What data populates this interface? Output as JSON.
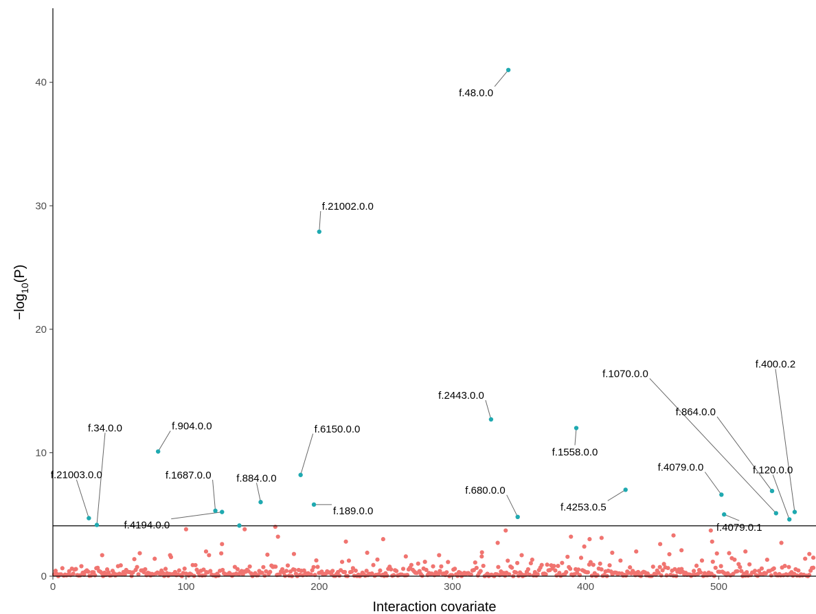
{
  "chart_data": {
    "type": "scatter",
    "title": "",
    "xlabel": "Interaction covariate",
    "ylabel_parts": [
      "−log",
      "10",
      "(P)"
    ],
    "xlim": [
      0,
      573
    ],
    "ylim": [
      0,
      46
    ],
    "x_ticks": [
      0,
      100,
      200,
      300,
      400,
      500
    ],
    "y_ticks": [
      0,
      10,
      20,
      30,
      40
    ],
    "x_tick_labels": [
      "0",
      "100",
      "200",
      "300",
      "400",
      "500"
    ],
    "y_tick_labels": [
      "0",
      "10",
      "20",
      "30",
      "40"
    ],
    "threshold": 4.08,
    "grid": false,
    "colors": {
      "significant": "#1FA9B0",
      "nonsignificant": "#F07470",
      "threshold_line": "#000000",
      "leader_line": "#666666"
    },
    "significant_points": [
      {
        "label": "f.48.0.0",
        "x": 342,
        "y": 41.0
      },
      {
        "label": "f.21002.0.0",
        "x": 200,
        "y": 27.9
      },
      {
        "label": "f.2443.0.0",
        "x": 329,
        "y": 12.7
      },
      {
        "label": "f.1558.0.0",
        "x": 393,
        "y": 12.0
      },
      {
        "label": "f.904.0.0",
        "x": 79,
        "y": 10.1
      },
      {
        "label": "f.6150.0.0",
        "x": 186,
        "y": 8.2
      },
      {
        "label": "f.4253.0.5",
        "x": 430,
        "y": 7.0
      },
      {
        "label": "f.864.0.0",
        "x": 540,
        "y": 6.9
      },
      {
        "label": "f.4079.0.0",
        "x": 502,
        "y": 6.6
      },
      {
        "label": "f.884.0.0",
        "x": 156,
        "y": 6.0
      },
      {
        "label": "f.189.0.0",
        "x": 196,
        "y": 5.8
      },
      {
        "label": "f.1687.0.0",
        "x": 122,
        "y": 5.3
      },
      {
        "label": "f.4194.0.0",
        "x": 127,
        "y": 5.2
      },
      {
        "label": "f.400.0.2",
        "x": 557,
        "y": 5.2
      },
      {
        "label": "f.1070.0.0",
        "x": 543,
        "y": 5.1
      },
      {
        "label": "f.4079.0.1",
        "x": 504,
        "y": 5.0
      },
      {
        "label": "f.680.0.0",
        "x": 349,
        "y": 4.8
      },
      {
        "label": "f.21003.0.0",
        "x": 27,
        "y": 4.7
      },
      {
        "label": "f.120.0.0",
        "x": 553,
        "y": 4.6
      },
      {
        "label": "f.34.0.0",
        "x": 33,
        "y": 4.15
      },
      {
        "label": "",
        "x": 140,
        "y": 4.1
      }
    ],
    "highlighted_nonsignificant": [
      {
        "x": 100,
        "y": 3.8
      },
      {
        "x": 144,
        "y": 3.8
      },
      {
        "x": 167,
        "y": 4.0
      },
      {
        "x": 169,
        "y": 3.2
      },
      {
        "x": 220,
        "y": 2.8
      },
      {
        "x": 248,
        "y": 3.0
      },
      {
        "x": 334,
        "y": 2.7
      },
      {
        "x": 340,
        "y": 3.7
      },
      {
        "x": 389,
        "y": 3.2
      },
      {
        "x": 403,
        "y": 3.0
      },
      {
        "x": 412,
        "y": 3.1
      },
      {
        "x": 466,
        "y": 3.3
      },
      {
        "x": 494,
        "y": 3.7
      },
      {
        "x": 495,
        "y": 2.8
      },
      {
        "x": 547,
        "y": 2.7
      },
      {
        "x": 37,
        "y": 1.7
      },
      {
        "x": 88,
        "y": 1.7
      },
      {
        "x": 115,
        "y": 2.0
      },
      {
        "x": 127,
        "y": 2.6
      },
      {
        "x": 181,
        "y": 1.8
      },
      {
        "x": 265,
        "y": 1.6
      },
      {
        "x": 290,
        "y": 1.7
      },
      {
        "x": 352,
        "y": 1.7
      },
      {
        "x": 399,
        "y": 2.4
      },
      {
        "x": 420,
        "y": 1.9
      },
      {
        "x": 438,
        "y": 2.0
      },
      {
        "x": 456,
        "y": 2.6
      },
      {
        "x": 520,
        "y": 2.0
      },
      {
        "x": 568,
        "y": 1.8
      },
      {
        "x": 571,
        "y": 1.5
      },
      {
        "x": 322,
        "y": 1.6
      },
      {
        "x": 236,
        "y": 1.9
      },
      {
        "x": 472,
        "y": 2.1
      }
    ],
    "nonsignificant_count": 560
  }
}
